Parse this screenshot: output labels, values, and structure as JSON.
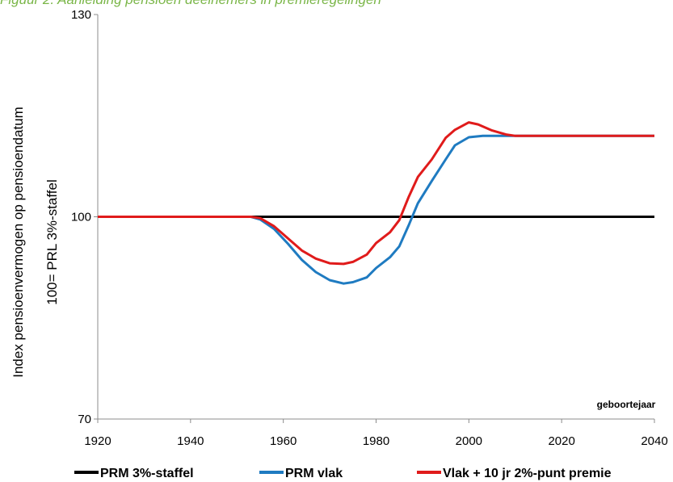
{
  "caption": "Figuur 2. Aanleiding pensioen deelnemers in premieregelingen",
  "chart_data": {
    "type": "line",
    "title": "",
    "ylabel_line1": "Index pensioenvermogen op pensioendatum",
    "ylabel_line2": "100= PRL 3%-staffel",
    "xlabel": "geboortejaar",
    "xlim": [
      1920,
      2040
    ],
    "ylim": [
      70,
      130
    ],
    "xticks": [
      1920,
      1940,
      1960,
      1980,
      2000,
      2020,
      2040
    ],
    "yticks": [
      70,
      100,
      130
    ],
    "legend_position": "bottom",
    "series": [
      {
        "name": "PRM 3%-staffel",
        "color": "#000000",
        "points": [
          [
            1920,
            100
          ],
          [
            2040,
            100
          ]
        ]
      },
      {
        "name": "PRM vlak",
        "color": "#1f7bc1",
        "points": [
          [
            1920,
            100
          ],
          [
            1953,
            100
          ],
          [
            1955,
            99.6
          ],
          [
            1958,
            98.2
          ],
          [
            1961,
            96
          ],
          [
            1964,
            93.6
          ],
          [
            1967,
            91.8
          ],
          [
            1970,
            90.6
          ],
          [
            1973,
            90.1
          ],
          [
            1975,
            90.3
          ],
          [
            1978,
            91
          ],
          [
            1980,
            92.4
          ],
          [
            1983,
            94
          ],
          [
            1985,
            95.6
          ],
          [
            1987,
            98.7
          ],
          [
            1989,
            102
          ],
          [
            1992,
            105.3
          ],
          [
            1995,
            108.5
          ],
          [
            1997,
            110.6
          ],
          [
            2000,
            111.8
          ],
          [
            2003,
            112
          ],
          [
            2010,
            112
          ],
          [
            2020,
            112
          ],
          [
            2040,
            112
          ]
        ]
      },
      {
        "name": "Vlak + 10 jr 2%-punt premie",
        "color": "#e01b1b",
        "points": [
          [
            1920,
            100
          ],
          [
            1953,
            100
          ],
          [
            1955,
            99.8
          ],
          [
            1958,
            98.6
          ],
          [
            1961,
            96.8
          ],
          [
            1964,
            95
          ],
          [
            1967,
            93.8
          ],
          [
            1970,
            93.1
          ],
          [
            1973,
            93
          ],
          [
            1975,
            93.3
          ],
          [
            1978,
            94.4
          ],
          [
            1980,
            96.1
          ],
          [
            1983,
            97.7
          ],
          [
            1985,
            99.5
          ],
          [
            1987,
            102.9
          ],
          [
            1989,
            105.9
          ],
          [
            1992,
            108.5
          ],
          [
            1995,
            111.7
          ],
          [
            1997,
            112.9
          ],
          [
            2000,
            114
          ],
          [
            2002,
            113.7
          ],
          [
            2005,
            112.8
          ],
          [
            2008,
            112.2
          ],
          [
            2010,
            112
          ],
          [
            2020,
            112
          ],
          [
            2040,
            112
          ]
        ]
      }
    ]
  }
}
